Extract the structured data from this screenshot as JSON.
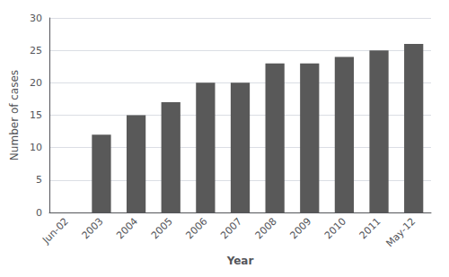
{
  "chart_data": {
    "type": "bar",
    "categories": [
      "Jun-02",
      "2003",
      "2004",
      "2005",
      "2006",
      "2007",
      "2008",
      "2009",
      "2010",
      "2011",
      "May-12"
    ],
    "values": [
      0,
      12,
      15,
      17,
      20,
      20,
      23,
      23,
      24,
      25,
      26
    ],
    "color": "#595959",
    "xlabel": "Year",
    "ylabel": "Number of cases",
    "ylim": [
      0,
      30
    ],
    "yticks": [
      0,
      5,
      10,
      15,
      20,
      25,
      30
    ],
    "grid": true
  }
}
